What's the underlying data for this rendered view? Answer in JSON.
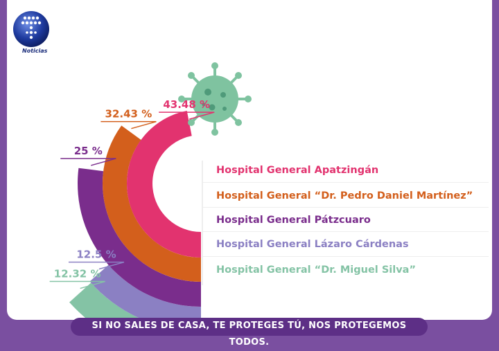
{
  "brand": {
    "logo_label": "Noticias"
  },
  "footer": {
    "slogan": "SI NO SALES DE CASA, TE PROTEGES TÚ, NOS PROTEGEMOS TODOS."
  },
  "icons": {
    "virus": "virus-icon"
  },
  "chart_data": {
    "type": "radial-bar",
    "categories": [
      "Hospital General Apatzingán",
      "Hospital General “Dr. Pedro Daniel Martínez”",
      "Hospital General Pátzcuaro",
      "Hospital General Lázaro Cárdenas",
      "Hospital General “Dr. Miguel Silva”"
    ],
    "values": [
      43.48,
      32.43,
      25,
      12.5,
      12.32
    ],
    "value_labels": [
      "43.48 %",
      "32.43 %",
      "25 %",
      "12.5 %",
      "12.32 %"
    ],
    "colors": [
      "#e2336f",
      "#d35f1c",
      "#7a2d8c",
      "#8b80c3",
      "#84c3a5"
    ]
  }
}
